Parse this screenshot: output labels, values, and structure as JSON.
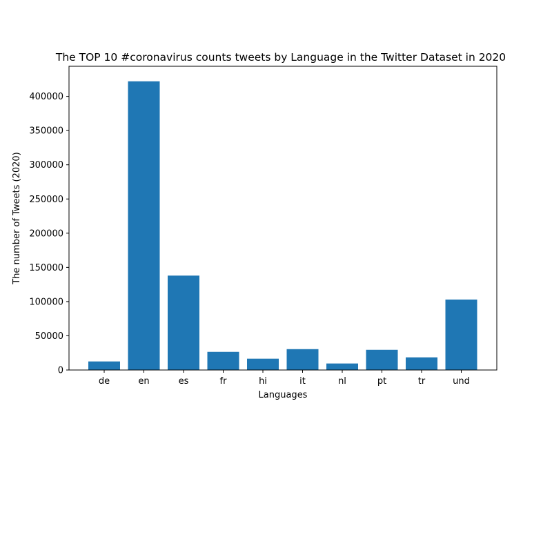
{
  "chart_data": {
    "type": "bar",
    "title": "The TOP 10 #coronavirus counts tweets by Language in the Twitter Dataset in 2020",
    "xlabel": "Languages",
    "ylabel": "The number of Tweets (2020)",
    "categories": [
      "de",
      "en",
      "es",
      "fr",
      "hi",
      "it",
      "nl",
      "pt",
      "tr",
      "und"
    ],
    "values": [
      12500,
      422000,
      138000,
      26500,
      16500,
      30500,
      9500,
      29500,
      18500,
      103000
    ],
    "ylim": [
      0,
      444000
    ],
    "yticks": [
      0,
      50000,
      100000,
      150000,
      200000,
      250000,
      300000,
      350000,
      400000
    ],
    "ytick_labels": [
      "0",
      "50000",
      "100000",
      "150000",
      "200000",
      "250000",
      "300000",
      "350000",
      "400000"
    ],
    "bar_color": "#1f77b4",
    "grid": false,
    "legend": "none"
  }
}
